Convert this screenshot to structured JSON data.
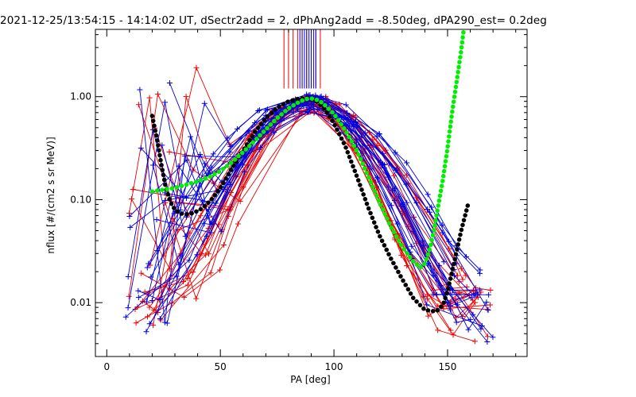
{
  "chart_data": {
    "type": "line",
    "title": "2021-12-25/13:54:15 - 14:14:02 UT, dSectr2add = 2, dPhAng2add = -8.50deg, dPA290_est=   0.2deg",
    "xlabel": "PA [deg]",
    "ylabel": "nflux [#/(cm2 s sr MeV)]",
    "xlim": [
      -5,
      185
    ],
    "ylim": [
      0.003,
      4.5
    ],
    "yscale": "log",
    "x_ticks": [
      0,
      50,
      100,
      150
    ],
    "x_tick_labels": [
      "0",
      "50",
      "100",
      "150"
    ],
    "y_ticks": [
      0.01,
      0.1,
      1.0
    ],
    "y_tick_labels": [
      "0.01",
      "0.10",
      "1.00"
    ],
    "grid": false,
    "vertical_lines": {
      "red": [
        78,
        80,
        82,
        84,
        86,
        88,
        90,
        92,
        94
      ],
      "blue": [
        85,
        86,
        87,
        88,
        89,
        90,
        91,
        92
      ],
      "ymin": 1.2,
      "ymax": 4.5
    },
    "series": [
      {
        "color": "#000000",
        "style": "thick-dots",
        "x": [
          20,
          22,
          24,
          26,
          28,
          30,
          32,
          35,
          38,
          42,
          46,
          50,
          55,
          60,
          65,
          70,
          75,
          80,
          85,
          88,
          90,
          93,
          96,
          100,
          105,
          110,
          115,
          120,
          125,
          130,
          135,
          140,
          145,
          148,
          150,
          153,
          156,
          159
        ],
        "y": [
          0.65,
          0.4,
          0.22,
          0.13,
          0.095,
          0.08,
          0.074,
          0.072,
          0.074,
          0.082,
          0.1,
          0.13,
          0.2,
          0.3,
          0.45,
          0.62,
          0.78,
          0.9,
          0.96,
          0.97,
          0.95,
          0.88,
          0.75,
          0.55,
          0.33,
          0.17,
          0.085,
          0.045,
          0.027,
          0.017,
          0.011,
          0.0085,
          0.0082,
          0.0095,
          0.013,
          0.025,
          0.05,
          0.09
        ]
      },
      {
        "color": "#00ee00",
        "style": "thick-dots",
        "x": [
          20,
          25,
          30,
          35,
          40,
          45,
          50,
          55,
          60,
          65,
          70,
          75,
          80,
          85,
          88,
          90,
          92,
          95,
          100,
          105,
          110,
          115,
          120,
          125,
          130,
          135,
          138,
          140,
          142,
          144,
          146,
          148,
          150,
          152,
          154,
          156,
          157
        ],
        "y": [
          0.12,
          0.125,
          0.13,
          0.14,
          0.15,
          0.165,
          0.19,
          0.23,
          0.29,
          0.37,
          0.48,
          0.62,
          0.77,
          0.9,
          0.95,
          0.96,
          0.94,
          0.87,
          0.68,
          0.47,
          0.3,
          0.17,
          0.095,
          0.055,
          0.035,
          0.025,
          0.022,
          0.024,
          0.032,
          0.05,
          0.09,
          0.16,
          0.32,
          0.7,
          1.4,
          2.8,
          4.3
        ]
      }
    ]
  }
}
